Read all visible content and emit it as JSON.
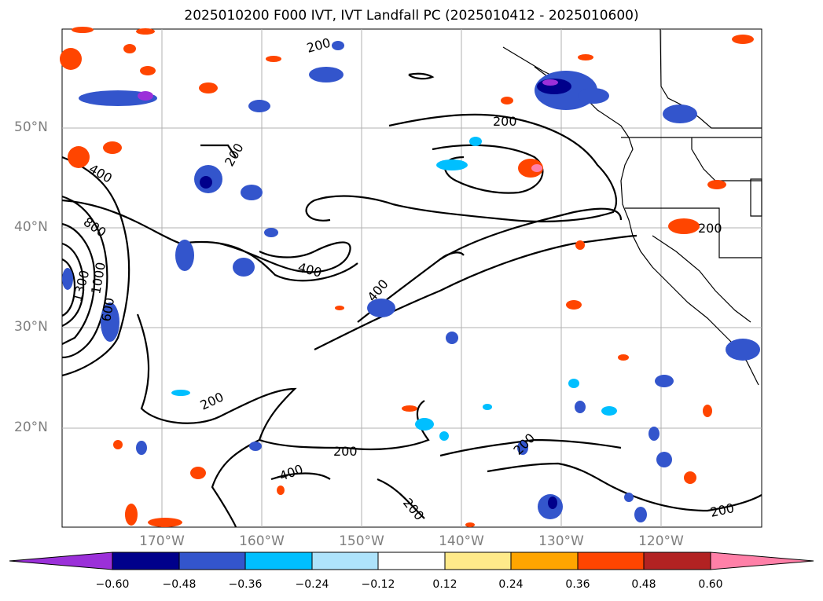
{
  "title": "2025010200 F000 IVT, IVT Landfall PC (2025010412 - 2025010600)",
  "lat_labels": [
    "50°N",
    "40°N",
    "30°N",
    "20°N"
  ],
  "lon_labels": [
    "170°W",
    "160°W",
    "150°W",
    "140°W",
    "130°W",
    "120°W"
  ],
  "contour_labels": [
    "200",
    "200",
    "200",
    "200",
    "200",
    "200",
    "200",
    "200",
    "200",
    "400",
    "400",
    "400",
    "400",
    "600",
    "800",
    "1000",
    "1300",
    "200"
  ],
  "colorbar": {
    "ticks": [
      "−0.60",
      "−0.48",
      "−0.36",
      "−0.24",
      "−0.12",
      "0.12",
      "0.24",
      "0.36",
      "0.48",
      "0.60"
    ],
    "colors": [
      "#9b30d9",
      "#00008b",
      "#3355cc",
      "#00bfff",
      "#aee3fb",
      "#ffffff",
      "#ffea8a",
      "#ffa500",
      "#ff4500",
      "#b22222",
      "#ff80a8"
    ]
  },
  "colors": {
    "coast": "#000000",
    "contour": "#000000",
    "grid": "#b0b0b0"
  }
}
